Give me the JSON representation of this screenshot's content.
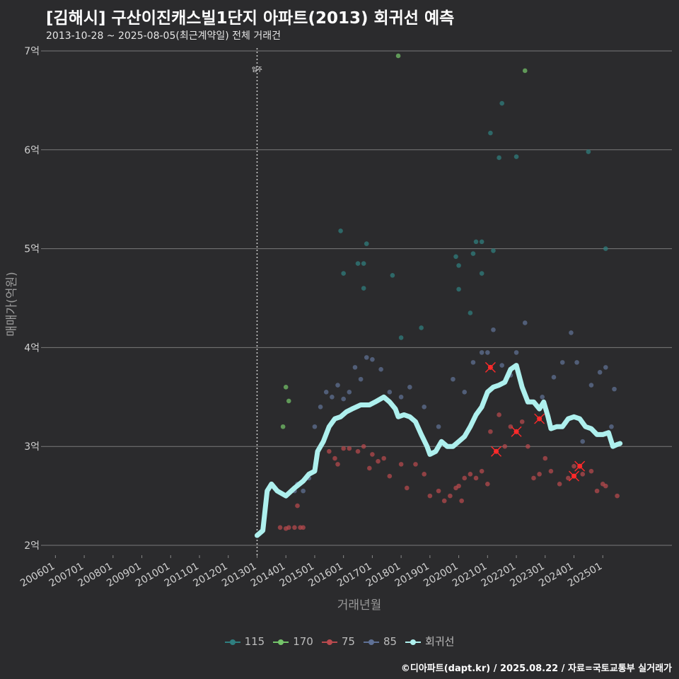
{
  "title": "[김해시] 구산이진캐스빌1단지 아파트(2013) 회귀선 예측",
  "subtitle": "2013-10-28 ~ 2025-08-05(최근계약일) 전체 거래건",
  "caption": "©디아파트(dapt.kr) / 2025.08.22 / 자료=국토교통부 실거래가",
  "chart_data": {
    "type": "scatter",
    "xlabel": "거래년월",
    "ylabel": "매매가(억원)",
    "ylim": [
      1.9,
      7.1
    ],
    "xlim": [
      2005.5,
      2027.4
    ],
    "yticks": [
      2,
      3,
      4,
      5,
      6,
      7
    ],
    "ytick_labels": [
      "2억",
      "3억",
      "4억",
      "5억",
      "6억",
      "7억"
    ],
    "xticks": [
      2006,
      2007,
      2008,
      2009,
      2010,
      2011,
      2012,
      2013,
      2014,
      2015,
      2016,
      2017,
      2018,
      2019,
      2020,
      2021,
      2022,
      2023,
      2024,
      2025
    ],
    "xtick_labels": [
      "200601",
      "200701",
      "200801",
      "200901",
      "201001",
      "201101",
      "201201",
      "201301",
      "201401",
      "201501",
      "201601",
      "201701",
      "201801",
      "201901",
      "202001",
      "202101",
      "202201",
      "202301",
      "202401",
      "202501"
    ],
    "annotation": {
      "label": "입주",
      "x": 2013.0
    },
    "colors": {
      "115": "#2f7f80",
      "170": "#74c46a",
      "75": "#b94a4e",
      "85": "#5f7196",
      "회귀선": "#aef0ee"
    },
    "series": [
      {
        "name": "115",
        "points": [
          [
            2015.9,
            5.18
          ],
          [
            2016.0,
            4.75
          ],
          [
            2016.5,
            4.85
          ],
          [
            2016.7,
            4.85
          ],
          [
            2016.7,
            4.6
          ],
          [
            2016.8,
            5.05
          ],
          [
            2017.7,
            4.73
          ],
          [
            2018.0,
            4.1
          ],
          [
            2018.7,
            4.2
          ],
          [
            2019.9,
            4.92
          ],
          [
            2020.0,
            4.83
          ],
          [
            2020.0,
            4.59
          ],
          [
            2020.4,
            4.35
          ],
          [
            2020.5,
            4.95
          ],
          [
            2020.6,
            5.07
          ],
          [
            2020.8,
            5.07
          ],
          [
            2020.8,
            4.75
          ],
          [
            2021.1,
            6.17
          ],
          [
            2021.2,
            4.98
          ],
          [
            2021.5,
            6.47
          ],
          [
            2021.4,
            5.92
          ],
          [
            2022.0,
            5.93
          ],
          [
            2024.5,
            5.98
          ],
          [
            2025.1,
            5.0
          ]
        ]
      },
      {
        "name": "170",
        "points": [
          [
            2013.9,
            3.2
          ],
          [
            2014.0,
            3.6
          ],
          [
            2014.1,
            3.46
          ],
          [
            2017.9,
            6.95
          ],
          [
            2022.3,
            6.8
          ]
        ]
      },
      {
        "name": "75",
        "points": [
          [
            2013.8,
            2.18
          ],
          [
            2014.0,
            2.17
          ],
          [
            2014.1,
            2.18
          ],
          [
            2014.3,
            2.18
          ],
          [
            2014.5,
            2.18
          ],
          [
            2014.6,
            2.18
          ],
          [
            2014.4,
            2.4
          ],
          [
            2015.5,
            2.95
          ],
          [
            2015.7,
            2.88
          ],
          [
            2015.8,
            2.82
          ],
          [
            2016.0,
            2.98
          ],
          [
            2016.2,
            2.98
          ],
          [
            2016.5,
            2.95
          ],
          [
            2016.7,
            3.0
          ],
          [
            2016.9,
            2.78
          ],
          [
            2017.0,
            2.92
          ],
          [
            2017.2,
            2.85
          ],
          [
            2017.4,
            2.88
          ],
          [
            2017.6,
            2.7
          ],
          [
            2018.0,
            2.82
          ],
          [
            2018.2,
            2.58
          ],
          [
            2018.5,
            2.82
          ],
          [
            2018.8,
            2.72
          ],
          [
            2019.0,
            2.5
          ],
          [
            2019.3,
            2.55
          ],
          [
            2019.5,
            2.45
          ],
          [
            2019.7,
            2.5
          ],
          [
            2019.9,
            2.58
          ],
          [
            2020.0,
            2.6
          ],
          [
            2020.1,
            2.45
          ],
          [
            2020.2,
            2.68
          ],
          [
            2020.4,
            2.72
          ],
          [
            2020.6,
            2.68
          ],
          [
            2020.8,
            2.75
          ],
          [
            2021.0,
            2.62
          ],
          [
            2021.1,
            3.15
          ],
          [
            2021.4,
            3.32
          ],
          [
            2021.6,
            3.0
          ],
          [
            2021.8,
            3.2
          ],
          [
            2022.0,
            3.15
          ],
          [
            2022.2,
            3.25
          ],
          [
            2022.4,
            3.0
          ],
          [
            2022.6,
            2.68
          ],
          [
            2022.8,
            2.72
          ],
          [
            2023.0,
            2.88
          ],
          [
            2023.2,
            2.75
          ],
          [
            2023.5,
            2.62
          ],
          [
            2023.8,
            2.68
          ],
          [
            2024.0,
            2.8
          ],
          [
            2024.3,
            2.72
          ],
          [
            2024.6,
            2.75
          ],
          [
            2024.8,
            2.55
          ],
          [
            2025.0,
            2.62
          ],
          [
            2025.1,
            2.6
          ],
          [
            2025.5,
            2.5
          ]
        ]
      },
      {
        "name": "85",
        "points": [
          [
            2014.3,
            2.55
          ],
          [
            2014.4,
            2.62
          ],
          [
            2014.6,
            2.55
          ],
          [
            2014.8,
            2.68
          ],
          [
            2015.0,
            3.2
          ],
          [
            2015.2,
            3.4
          ],
          [
            2015.4,
            3.55
          ],
          [
            2015.6,
            3.5
          ],
          [
            2015.8,
            3.62
          ],
          [
            2016.0,
            3.48
          ],
          [
            2016.2,
            3.55
          ],
          [
            2016.4,
            3.8
          ],
          [
            2016.6,
            3.68
          ],
          [
            2016.8,
            3.9
          ],
          [
            2017.0,
            3.88
          ],
          [
            2017.3,
            3.78
          ],
          [
            2017.6,
            3.55
          ],
          [
            2018.0,
            3.5
          ],
          [
            2018.3,
            3.6
          ],
          [
            2018.8,
            3.4
          ],
          [
            2019.3,
            3.2
          ],
          [
            2019.8,
            3.68
          ],
          [
            2020.2,
            3.55
          ],
          [
            2020.5,
            3.85
          ],
          [
            2020.8,
            3.95
          ],
          [
            2021.0,
            3.95
          ],
          [
            2021.2,
            4.18
          ],
          [
            2021.5,
            3.82
          ],
          [
            2021.8,
            3.72
          ],
          [
            2022.0,
            3.95
          ],
          [
            2022.3,
            4.25
          ],
          [
            2022.6,
            3.45
          ],
          [
            2022.9,
            3.5
          ],
          [
            2023.3,
            3.7
          ],
          [
            2023.6,
            3.85
          ],
          [
            2023.9,
            4.15
          ],
          [
            2024.1,
            3.85
          ],
          [
            2024.3,
            3.05
          ],
          [
            2024.6,
            3.62
          ],
          [
            2024.9,
            3.75
          ],
          [
            2025.1,
            3.8
          ],
          [
            2025.3,
            3.2
          ],
          [
            2025.4,
            3.58
          ]
        ]
      },
      {
        "name": "회귀선",
        "points": [
          [
            2013.0,
            2.1
          ],
          [
            2013.2,
            2.15
          ],
          [
            2013.35,
            2.55
          ],
          [
            2013.5,
            2.62
          ],
          [
            2013.7,
            2.55
          ],
          [
            2014.0,
            2.5
          ],
          [
            2014.3,
            2.58
          ],
          [
            2014.6,
            2.65
          ],
          [
            2014.8,
            2.72
          ],
          [
            2015.0,
            2.75
          ],
          [
            2015.1,
            2.95
          ],
          [
            2015.3,
            3.05
          ],
          [
            2015.5,
            3.2
          ],
          [
            2015.7,
            3.28
          ],
          [
            2015.9,
            3.3
          ],
          [
            2016.1,
            3.35
          ],
          [
            2016.3,
            3.38
          ],
          [
            2016.6,
            3.42
          ],
          [
            2016.9,
            3.42
          ],
          [
            2017.1,
            3.45
          ],
          [
            2017.4,
            3.5
          ],
          [
            2017.6,
            3.45
          ],
          [
            2017.8,
            3.38
          ],
          [
            2017.9,
            3.3
          ],
          [
            2018.1,
            3.32
          ],
          [
            2018.3,
            3.3
          ],
          [
            2018.5,
            3.25
          ],
          [
            2018.7,
            3.12
          ],
          [
            2018.9,
            3.0
          ],
          [
            2019.0,
            2.92
          ],
          [
            2019.2,
            2.95
          ],
          [
            2019.4,
            3.05
          ],
          [
            2019.6,
            3.0
          ],
          [
            2019.8,
            3.0
          ],
          [
            2020.0,
            3.05
          ],
          [
            2020.2,
            3.1
          ],
          [
            2020.4,
            3.2
          ],
          [
            2020.6,
            3.32
          ],
          [
            2020.8,
            3.4
          ],
          [
            2021.0,
            3.55
          ],
          [
            2021.2,
            3.6
          ],
          [
            2021.4,
            3.62
          ],
          [
            2021.6,
            3.65
          ],
          [
            2021.8,
            3.78
          ],
          [
            2022.0,
            3.82
          ],
          [
            2022.2,
            3.6
          ],
          [
            2022.4,
            3.45
          ],
          [
            2022.6,
            3.45
          ],
          [
            2022.8,
            3.38
          ],
          [
            2022.95,
            3.45
          ],
          [
            2023.1,
            3.3
          ],
          [
            2023.2,
            3.18
          ],
          [
            2023.4,
            3.2
          ],
          [
            2023.6,
            3.2
          ],
          [
            2023.8,
            3.28
          ],
          [
            2024.0,
            3.3
          ],
          [
            2024.2,
            3.28
          ],
          [
            2024.4,
            3.2
          ],
          [
            2024.6,
            3.18
          ],
          [
            2024.8,
            3.12
          ],
          [
            2025.0,
            3.12
          ],
          [
            2025.2,
            3.14
          ],
          [
            2025.35,
            3.0
          ],
          [
            2025.5,
            3.02
          ],
          [
            2025.6,
            3.03
          ]
        ]
      }
    ],
    "outliers": [
      [
        2021.1,
        3.8
      ],
      [
        2021.3,
        2.95
      ],
      [
        2022.0,
        3.15
      ],
      [
        2022.8,
        3.28
      ],
      [
        2024.0,
        2.7
      ],
      [
        2024.2,
        2.8
      ]
    ]
  }
}
